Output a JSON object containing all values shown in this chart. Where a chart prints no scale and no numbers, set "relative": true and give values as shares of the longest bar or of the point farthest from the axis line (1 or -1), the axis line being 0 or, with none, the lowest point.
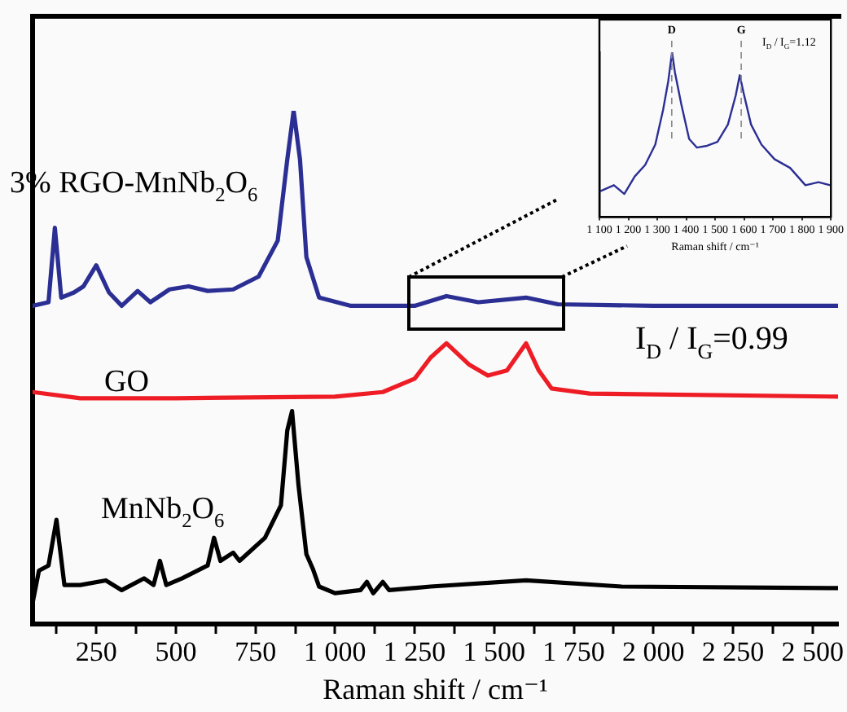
{
  "chart_data": [
    {
      "type": "line",
      "xlabel": "Raman shift / cm⁻¹",
      "relative": true,
      "legend": false,
      "grid": false,
      "marker": "none",
      "line_style": "solid",
      "tick_labels": "x",
      "xlim": [
        50,
        2580
      ],
      "xticks": [
        {
          "value": 125,
          "label": null
        },
        250,
        {
          "value": 375,
          "label": null
        },
        500,
        {
          "value": 625,
          "label": null
        },
        750,
        {
          "value": 875,
          "label": null
        },
        {
          "value": 1000,
          "label": "1 000"
        },
        {
          "value": 1125,
          "label": null
        },
        {
          "value": 1250,
          "label": "1 250"
        },
        {
          "value": 1375,
          "label": null
        },
        {
          "value": 1500,
          "label": "1 500"
        },
        {
          "value": 1625,
          "label": null
        },
        {
          "value": 1750,
          "label": "1 750"
        },
        {
          "value": 1875,
          "label": null
        },
        {
          "value": 2000,
          "label": "2 000"
        },
        {
          "value": 2125,
          "label": null
        },
        {
          "value": 2250,
          "label": "2 250"
        },
        {
          "value": 2375,
          "label": null
        },
        {
          "value": 2500,
          "label": "2 500"
        }
      ],
      "annotations": [
        "I$_{D}$ / I$_{G}$=0.99"
      ],
      "series": [
        {
          "name": "3% RGO-MnNb$_{2}$O$_{6}$",
          "color": "#2b2f94",
          "x": [
            50,
            100,
            120,
            140,
            180,
            210,
            250,
            290,
            330,
            380,
            420,
            480,
            540,
            600,
            680,
            760,
            820,
            850,
            870,
            890,
            910,
            950,
            1050,
            1250,
            1350,
            1450,
            1600,
            1700,
            2000,
            2580
          ],
          "values": [
            0.62,
            0.627,
            0.772,
            0.636,
            0.646,
            0.658,
            0.699,
            0.646,
            0.62,
            0.649,
            0.627,
            0.652,
            0.658,
            0.649,
            0.652,
            0.677,
            0.747,
            0.905,
            1,
            0.905,
            0.715,
            0.636,
            0.62,
            0.62,
            0.639,
            0.627,
            0.636,
            0.623,
            0.62,
            0.62
          ]
        },
        {
          "name": "GO",
          "color": "#ee1c25",
          "x": [
            50,
            200,
            500,
            1000,
            1150,
            1250,
            1300,
            1350,
            1420,
            1480,
            1540,
            1600,
            1640,
            1680,
            1800,
            2580
          ],
          "values": [
            0.452,
            0.44,
            0.44,
            0.443,
            0.452,
            0.478,
            0.519,
            0.547,
            0.506,
            0.484,
            0.494,
            0.547,
            0.494,
            0.459,
            0.449,
            0.443
          ]
        },
        {
          "name": "MnNb$_{2}$O$_{6}$",
          "color": "#000000",
          "x": [
            50,
            70,
            100,
            125,
            150,
            200,
            280,
            330,
            400,
            430,
            450,
            470,
            520,
            600,
            620,
            640,
            680,
            700,
            780,
            830,
            850,
            865,
            885,
            910,
            930,
            950,
            1000,
            1080,
            1100,
            1120,
            1150,
            1170,
            1300,
            1600,
            1900,
            2580
          ],
          "values": [
            0.041,
            0.104,
            0.114,
            0.203,
            0.076,
            0.076,
            0.085,
            0.066,
            0.089,
            0.076,
            0.123,
            0.076,
            0.089,
            0.114,
            0.168,
            0.123,
            0.139,
            0.123,
            0.168,
            0.231,
            0.377,
            0.415,
            0.272,
            0.136,
            0.108,
            0.073,
            0.06,
            0.066,
            0.082,
            0.06,
            0.082,
            0.066,
            0.073,
            0.085,
            0.073,
            0.07
          ]
        }
      ]
    },
    {
      "type": "line",
      "xlabel": "Raman shift / cm⁻¹",
      "relative": true,
      "legend": false,
      "grid": false,
      "marker": "none",
      "line_style": "solid",
      "tick_labels": "x",
      "xlim": [
        1100,
        1900
      ],
      "xticks": [
        {
          "value": 1100,
          "label": "1 100"
        },
        {
          "value": 1200,
          "label": "1 200"
        },
        {
          "value": 1300,
          "label": "1 300"
        },
        {
          "value": 1400,
          "label": "1 400"
        },
        {
          "value": 1500,
          "label": "1 500"
        },
        {
          "value": 1600,
          "label": "1 600"
        },
        {
          "value": 1700,
          "label": "1 700"
        },
        {
          "value": 1800,
          "label": "1 800"
        },
        {
          "value": 1900,
          "label": "1 900"
        }
      ],
      "annotations": [
        "I$_{D}$ / I$_{G}$=1.12"
      ],
      "ref_lines": [
        {
          "axis": "x",
          "value": 1350,
          "label": "D",
          "color": "#888888",
          "line_style": "dashed"
        },
        {
          "axis": "x",
          "value": 1590,
          "label": "G",
          "color": "#888888",
          "line_style": "dashed"
        }
      ],
      "series": [
        {
          "color": "#2b2f94",
          "x": [
            1105,
            1150,
            1186,
            1222,
            1258,
            1293,
            1320,
            1338,
            1351,
            1361,
            1383,
            1410,
            1437,
            1472,
            1508,
            1544,
            1571,
            1585,
            1598,
            1624,
            1660,
            1705,
            1759,
            1812,
            1857,
            1898
          ],
          "values": [
            0.158,
            0.193,
            0.14,
            0.246,
            0.316,
            0.439,
            0.649,
            0.825,
            1,
            0.877,
            0.684,
            0.474,
            0.421,
            0.432,
            0.456,
            0.561,
            0.737,
            0.86,
            0.754,
            0.561,
            0.439,
            0.351,
            0.298,
            0.193,
            0.211,
            0.193
          ]
        }
      ]
    }
  ]
}
